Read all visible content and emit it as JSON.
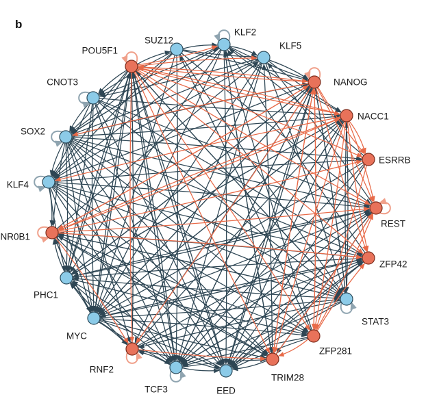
{
  "figure": {
    "panel_label": "b"
  },
  "colors": {
    "blue_node": "#8ccbe8",
    "blue_node_stroke": "#2b4a5a",
    "orange_node": "#e8725a",
    "orange_node_stroke": "#7a2c1c",
    "dark_edge": "#2e4654",
    "orange_edge": "#e86a48",
    "blue_loop": "#8fa4b0",
    "orange_loop": "#f0a08a"
  },
  "nodes": [
    {
      "id": "SUZ12",
      "label": "SUZ12",
      "group": "blue"
    },
    {
      "id": "KLF2",
      "label": "KLF2",
      "group": "blue",
      "self_loop": true
    },
    {
      "id": "KLF5",
      "label": "KLF5",
      "group": "blue"
    },
    {
      "id": "NANOG",
      "label": "NANOG",
      "group": "orange",
      "self_loop": true
    },
    {
      "id": "NACC1",
      "label": "NACC1",
      "group": "orange"
    },
    {
      "id": "ESRRB",
      "label": "ESRRB",
      "group": "orange"
    },
    {
      "id": "REST",
      "label": "REST",
      "group": "orange",
      "self_loop": true
    },
    {
      "id": "ZFP42",
      "label": "ZFP42",
      "group": "orange"
    },
    {
      "id": "STAT3",
      "label": "STAT3",
      "group": "blue",
      "self_loop": true
    },
    {
      "id": "ZFP281",
      "label": "ZFP281",
      "group": "orange"
    },
    {
      "id": "TRIM28",
      "label": "TRIM28",
      "group": "orange"
    },
    {
      "id": "EED",
      "label": "EED",
      "group": "blue"
    },
    {
      "id": "TCF3",
      "label": "TCF3",
      "group": "blue",
      "self_loop": true
    },
    {
      "id": "RNF2",
      "label": "RNF2",
      "group": "orange",
      "self_loop": true
    },
    {
      "id": "MYC",
      "label": "MYC",
      "group": "blue"
    },
    {
      "id": "PHC1",
      "label": "PHC1",
      "group": "blue"
    },
    {
      "id": "NR0B1",
      "label": "NR0B1",
      "group": "orange",
      "self_loop": true
    },
    {
      "id": "KLF4",
      "label": "KLF4",
      "group": "blue",
      "self_loop": true
    },
    {
      "id": "SOX2",
      "label": "SOX2",
      "group": "blue",
      "self_loop": true
    },
    {
      "id": "CNOT3",
      "label": "CNOT3",
      "group": "blue",
      "self_loop": true
    },
    {
      "id": "POU5F1",
      "label": "POU5F1",
      "group": "orange",
      "self_loop": true
    }
  ],
  "edges": {
    "orange_sources": [
      "POU5F1",
      "NANOG",
      "NACC1",
      "NR0B1",
      "ZFP281"
    ],
    "orange_pairs": [
      [
        "POU5F1",
        "NANOG"
      ],
      [
        "POU5F1",
        "NACC1"
      ],
      [
        "POU5F1",
        "ESRRB"
      ],
      [
        "POU5F1",
        "REST"
      ],
      [
        "POU5F1",
        "ZFP42"
      ],
      [
        "POU5F1",
        "TRIM28"
      ],
      [
        "POU5F1",
        "ZFP281"
      ],
      [
        "POU5F1",
        "RNF2"
      ],
      [
        "POU5F1",
        "KLF5"
      ],
      [
        "POU5F1",
        "KLF2"
      ],
      [
        "NANOG",
        "POU5F1"
      ],
      [
        "NANOG",
        "ESRRB"
      ],
      [
        "NANOG",
        "REST"
      ],
      [
        "NANOG",
        "ZFP42"
      ],
      [
        "NANOG",
        "ZFP281"
      ],
      [
        "NANOG",
        "TRIM28"
      ],
      [
        "NANOG",
        "NR0B1"
      ],
      [
        "NANOG",
        "SOX2"
      ],
      [
        "NANOG",
        "RNF2"
      ],
      [
        "NACC1",
        "POU5F1"
      ],
      [
        "NACC1",
        "REST"
      ],
      [
        "NACC1",
        "ZFP42"
      ],
      [
        "NACC1",
        "ZFP281"
      ],
      [
        "NACC1",
        "TRIM28"
      ],
      [
        "NACC1",
        "NR0B1"
      ],
      [
        "NACC1",
        "KLF4"
      ],
      [
        "NACC1",
        "ESRRB"
      ],
      [
        "NR0B1",
        "NANOG"
      ],
      [
        "NR0B1",
        "NACC1"
      ],
      [
        "NR0B1",
        "REST"
      ],
      [
        "NR0B1",
        "ZFP42"
      ],
      [
        "NR0B1",
        "ESRRB"
      ],
      [
        "NR0B1",
        "RNF2"
      ],
      [
        "ZFP281",
        "REST"
      ],
      [
        "ZFP281",
        "ZFP42"
      ],
      [
        "ZFP281",
        "NANOG"
      ],
      [
        "ZFP281",
        "TRIM28"
      ],
      [
        "TRIM28",
        "REST"
      ],
      [
        "TRIM28",
        "NANOG"
      ],
      [
        "RNF2",
        "TRIM28"
      ],
      [
        "ESRRB",
        "ZFP281"
      ]
    ],
    "dark_pairs": [
      [
        "SUZ12",
        "KLF2"
      ],
      [
        "SUZ12",
        "KLF5"
      ],
      [
        "SUZ12",
        "NANOG"
      ],
      [
        "SUZ12",
        "CNOT3"
      ],
      [
        "SUZ12",
        "SOX2"
      ],
      [
        "SUZ12",
        "KLF4"
      ],
      [
        "SUZ12",
        "MYC"
      ],
      [
        "SUZ12",
        "REST"
      ],
      [
        "SUZ12",
        "TCF3"
      ],
      [
        "SUZ12",
        "STAT3"
      ],
      [
        "KLF2",
        "KLF5"
      ],
      [
        "KLF2",
        "NANOG"
      ],
      [
        "KLF2",
        "CNOT3"
      ],
      [
        "KLF2",
        "SOX2"
      ],
      [
        "KLF2",
        "KLF4"
      ],
      [
        "KLF2",
        "PHC1"
      ],
      [
        "KLF2",
        "MYC"
      ],
      [
        "KLF2",
        "NACC1"
      ],
      [
        "KLF2",
        "EED"
      ],
      [
        "KLF2",
        "TRIM28"
      ],
      [
        "KLF5",
        "NANOG"
      ],
      [
        "KLF5",
        "NACC1"
      ],
      [
        "KLF5",
        "SOX2"
      ],
      [
        "KLF5",
        "KLF4"
      ],
      [
        "KLF5",
        "CNOT3"
      ],
      [
        "KLF5",
        "MYC"
      ],
      [
        "KLF5",
        "STAT3"
      ],
      [
        "KLF5",
        "TCF3"
      ],
      [
        "KLF5",
        "RNF2"
      ],
      [
        "CNOT3",
        "SOX2"
      ],
      [
        "CNOT3",
        "KLF4"
      ],
      [
        "CNOT3",
        "NACC1"
      ],
      [
        "CNOT3",
        "ZFP42"
      ],
      [
        "CNOT3",
        "STAT3"
      ],
      [
        "CNOT3",
        "TCF3"
      ],
      [
        "CNOT3",
        "MYC"
      ],
      [
        "CNOT3",
        "PHC1"
      ],
      [
        "CNOT3",
        "REST"
      ],
      [
        "CNOT3",
        "EED"
      ],
      [
        "SOX2",
        "KLF4"
      ],
      [
        "SOX2",
        "NANOG"
      ],
      [
        "SOX2",
        "NACC1"
      ],
      [
        "SOX2",
        "ESRRB"
      ],
      [
        "SOX2",
        "REST"
      ],
      [
        "SOX2",
        "ZFP42"
      ],
      [
        "SOX2",
        "STAT3"
      ],
      [
        "SOX2",
        "ZFP281"
      ],
      [
        "SOX2",
        "TRIM28"
      ],
      [
        "SOX2",
        "EED"
      ],
      [
        "SOX2",
        "TCF3"
      ],
      [
        "SOX2",
        "RNF2"
      ],
      [
        "SOX2",
        "MYC"
      ],
      [
        "SOX2",
        "PHC1"
      ],
      [
        "SOX2",
        "NR0B1"
      ],
      [
        "SOX2",
        "KLF2"
      ],
      [
        "KLF4",
        "NANOG"
      ],
      [
        "KLF4",
        "REST"
      ],
      [
        "KLF4",
        "ZFP42"
      ],
      [
        "KLF4",
        "STAT3"
      ],
      [
        "KLF4",
        "ZFP281"
      ],
      [
        "KLF4",
        "TRIM28"
      ],
      [
        "KLF4",
        "TCF3"
      ],
      [
        "KLF4",
        "MYC"
      ],
      [
        "KLF4",
        "PHC1"
      ],
      [
        "KLF4",
        "NR0B1"
      ],
      [
        "KLF4",
        "EED"
      ],
      [
        "KLF4",
        "ESRRB"
      ],
      [
        "MYC",
        "NANOG"
      ],
      [
        "MYC",
        "NACC1"
      ],
      [
        "MYC",
        "REST"
      ],
      [
        "MYC",
        "ZFP42"
      ],
      [
        "MYC",
        "STAT3"
      ],
      [
        "MYC",
        "ZFP281"
      ],
      [
        "MYC",
        "TRIM28"
      ],
      [
        "MYC",
        "EED"
      ],
      [
        "MYC",
        "TCF3"
      ],
      [
        "MYC",
        "RNF2"
      ],
      [
        "MYC",
        "PHC1"
      ],
      [
        "MYC",
        "NR0B1"
      ],
      [
        "MYC",
        "POU5F1"
      ],
      [
        "TCF3",
        "NANOG"
      ],
      [
        "TCF3",
        "NACC1"
      ],
      [
        "TCF3",
        "REST"
      ],
      [
        "TCF3",
        "EED"
      ],
      [
        "TCF3",
        "TRIM28"
      ],
      [
        "TCF3",
        "RNF2"
      ],
      [
        "TCF3",
        "PHC1"
      ],
      [
        "TCF3",
        "POU5F1"
      ],
      [
        "TCF3",
        "ZFP42"
      ],
      [
        "STAT3",
        "NANOG"
      ],
      [
        "STAT3",
        "NACC1"
      ],
      [
        "STAT3",
        "EED"
      ],
      [
        "STAT3",
        "TCF3"
      ],
      [
        "STAT3",
        "RNF2"
      ],
      [
        "STAT3",
        "PHC1"
      ],
      [
        "STAT3",
        "NR0B1"
      ],
      [
        "STAT3",
        "POU5F1"
      ],
      [
        "EED",
        "NANOG"
      ],
      [
        "EED",
        "POU5F1"
      ],
      [
        "EED",
        "RNF2"
      ],
      [
        "EED",
        "PHC1"
      ],
      [
        "EED",
        "REST"
      ],
      [
        "EED",
        "ZFP42"
      ],
      [
        "PHC1",
        "NANOG"
      ],
      [
        "PHC1",
        "NACC1"
      ],
      [
        "PHC1",
        "REST"
      ],
      [
        "PHC1",
        "ZFP42"
      ],
      [
        "PHC1",
        "ZFP281"
      ],
      [
        "PHC1",
        "POU5F1"
      ],
      [
        "PHC1",
        "RNF2"
      ],
      [
        "PHC1",
        "NR0B1"
      ],
      [
        "RNF2",
        "NANOG"
      ],
      [
        "RNF2",
        "NACC1"
      ],
      [
        "RNF2",
        "REST"
      ],
      [
        "RNF2",
        "ZFP42"
      ],
      [
        "RNF2",
        "POU5F1"
      ],
      [
        "NR0B1",
        "KLF5"
      ],
      [
        "NR0B1",
        "TRIM28"
      ],
      [
        "NR0B1",
        "STAT3"
      ],
      [
        "NR0B1",
        "MYC"
      ],
      [
        "NR0B1",
        "TCF3"
      ],
      [
        "ESRRB",
        "KLF2"
      ],
      [
        "ESRRB",
        "MYC"
      ],
      [
        "ESRRB",
        "TCF3"
      ],
      [
        "ESRRB",
        "EED"
      ],
      [
        "REST",
        "KLF5"
      ],
      [
        "REST",
        "TRIM28"
      ],
      [
        "REST",
        "TCF3"
      ],
      [
        "REST",
        "EED"
      ],
      [
        "REST",
        "PHC1"
      ],
      [
        "ZFP42",
        "KLF2"
      ],
      [
        "ZFP42",
        "NR0B1"
      ],
      [
        "ZFP42",
        "EED"
      ],
      [
        "ZFP42",
        "TCF3"
      ],
      [
        "ZFP42",
        "MYC"
      ],
      [
        "ZFP281",
        "SUZ12"
      ],
      [
        "ZFP281",
        "KLF2"
      ],
      [
        "ZFP281",
        "TCF3"
      ],
      [
        "ZFP281",
        "NR0B1"
      ],
      [
        "ZFP281",
        "EED"
      ],
      [
        "TRIM28",
        "KLF2"
      ],
      [
        "TRIM28",
        "KLF5"
      ],
      [
        "TRIM28",
        "EED"
      ],
      [
        "TRIM28",
        "NR0B1"
      ],
      [
        "NANOG",
        "MYC"
      ],
      [
        "NANOG",
        "TCF3"
      ],
      [
        "NANOG",
        "PHC1"
      ],
      [
        "NANOG",
        "EED"
      ],
      [
        "NANOG",
        "STAT3"
      ],
      [
        "NACC1",
        "MYC"
      ],
      [
        "NACC1",
        "TCF3"
      ],
      [
        "NACC1",
        "PHC1"
      ],
      [
        "NACC1",
        "STAT3"
      ],
      [
        "NACC1",
        "EED"
      ],
      [
        "POU5F1",
        "SOX2"
      ],
      [
        "POU5F1",
        "CNOT3"
      ],
      [
        "POU5F1",
        "KLF4"
      ],
      [
        "POU5F1",
        "MYC"
      ],
      [
        "POU5F1",
        "PHC1"
      ],
      [
        "POU5F1",
        "TCF3"
      ],
      [
        "POU5F1",
        "EED"
      ],
      [
        "POU5F1",
        "STAT3"
      ],
      [
        "POU5F1",
        "SUZ12"
      ]
    ]
  }
}
